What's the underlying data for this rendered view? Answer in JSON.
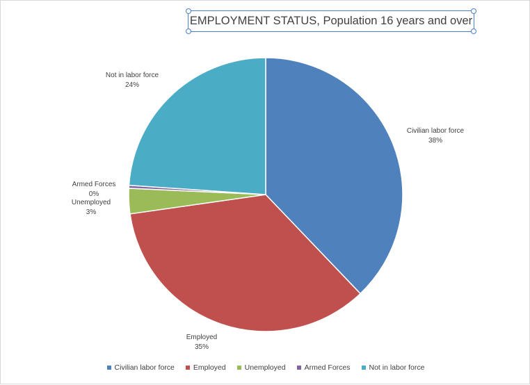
{
  "chart_data": {
    "type": "pie",
    "title": "EMPLOYMENT STATUS, Population 16 years and over",
    "categories": [
      "Civilian labor force",
      "Employed",
      "Unemployed",
      "Armed Forces",
      "Not in labor force"
    ],
    "values": [
      38,
      35,
      3,
      0,
      24
    ],
    "value_labels": [
      "38%",
      "35%",
      "3%",
      "0%",
      "24%"
    ],
    "colors": [
      "#4f81bd",
      "#c0504d",
      "#9bbb59",
      "#8064a2",
      "#4bacc6"
    ],
    "legend": "bottom"
  }
}
